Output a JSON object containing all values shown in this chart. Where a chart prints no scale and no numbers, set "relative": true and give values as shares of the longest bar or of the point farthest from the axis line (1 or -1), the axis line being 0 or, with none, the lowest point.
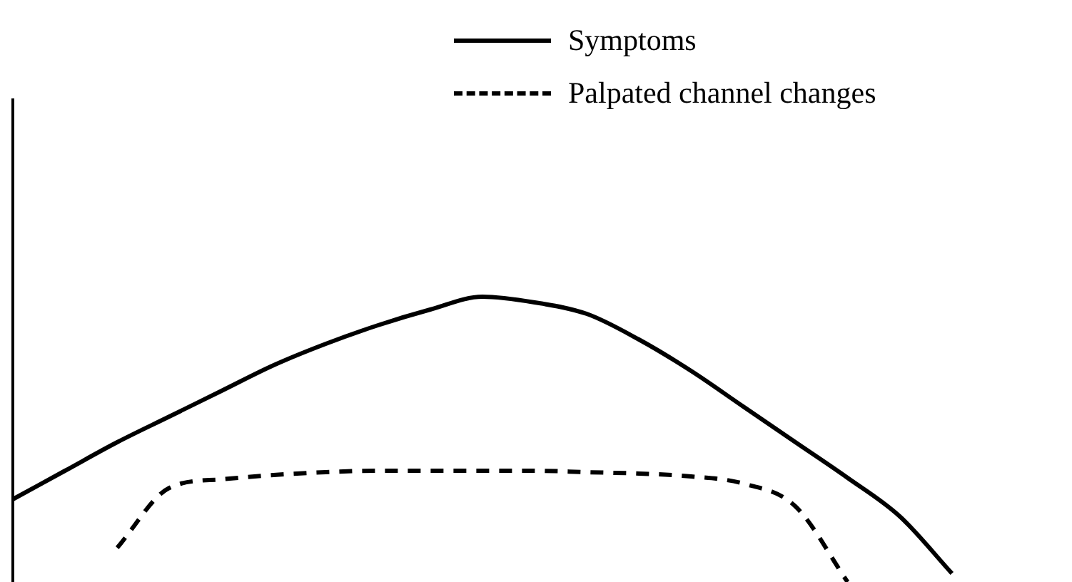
{
  "chart_data": {
    "type": "line",
    "relative": true,
    "legend": "top right",
    "marker": "none",
    "grid": false,
    "categories": [
      null,
      null,
      null,
      null,
      null,
      null,
      null,
      null,
      null,
      null,
      null,
      null,
      null,
      null,
      null,
      null,
      null,
      null,
      null,
      null,
      null
    ],
    "series": [
      {
        "name": "Symptoms",
        "color": "#000000",
        "line_style": "solid",
        "values": [
          0.29,
          0.39,
          0.49,
          0.58,
          0.67,
          0.76,
          0.835,
          0.9,
          0.955,
          1.0,
          0.98,
          0.94,
          0.85,
          0.74,
          0.615,
          0.49,
          0.365,
          0.23,
          0.03,
          null,
          null
        ]
      },
      {
        "name": "Palpated channel changes",
        "color": "#000000",
        "line_style": "dashed",
        "values": [
          null,
          null,
          0.12,
          0.33,
          0.36,
          0.375,
          0.385,
          0.39,
          0.39,
          0.39,
          0.39,
          0.385,
          0.38,
          0.37,
          0.345,
          0.265,
          0,
          null,
          null,
          null,
          null
        ]
      }
    ]
  }
}
